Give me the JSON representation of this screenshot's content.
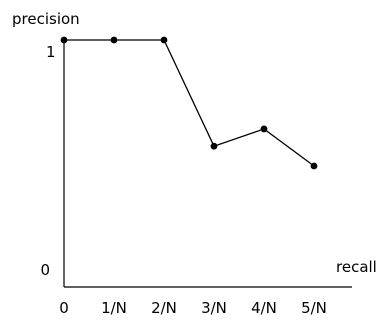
{
  "chart_data": {
    "type": "line",
    "title": "",
    "xlabel": "recall",
    "ylabel": "precision",
    "x_categories": [
      "0",
      "1/N",
      "2/N",
      "3/N",
      "4/N",
      "5/N"
    ],
    "y_tick_labels": [
      "0",
      "1"
    ],
    "ylim": [
      0,
      1
    ],
    "grid": false,
    "series": [
      {
        "x": [
          0,
          1,
          2,
          3,
          4,
          5
        ],
        "y": [
          1.0,
          1.0,
          1.0,
          0.57,
          0.64,
          0.49
        ]
      }
    ],
    "colors": {
      "line": "#000000",
      "marker": "#000000"
    }
  }
}
